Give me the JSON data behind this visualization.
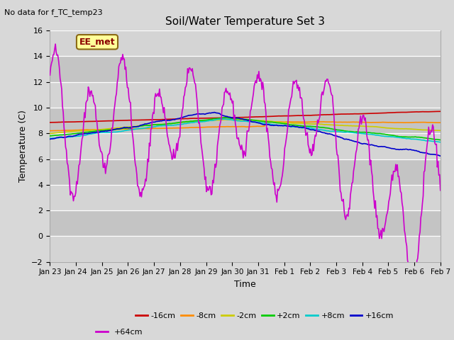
{
  "title": "Soil/Water Temperature Set 3",
  "xlabel": "Time",
  "ylabel": "Temperature (C)",
  "top_left_text": "No data for f_TC_temp23",
  "annotation_text": "EE_met",
  "ylim": [
    -2,
    16
  ],
  "yticks": [
    -2,
    0,
    2,
    4,
    6,
    8,
    10,
    12,
    14,
    16
  ],
  "xtick_labels": [
    "Jan 23",
    "Jan 24",
    "Jan 25",
    "Jan 26",
    "Jan 27",
    "Jan 28",
    "Jan 29",
    "Jan 30",
    "Jan 31",
    "Feb 1",
    "Feb 2",
    "Feb 3",
    "Feb 4",
    "Feb 5",
    "Feb 6",
    "Feb 7"
  ],
  "legend_entries": [
    "-16cm",
    "-8cm",
    "-2cm",
    "+2cm",
    "+8cm",
    "+16cm",
    "+64cm"
  ],
  "line_colors": [
    "#cc0000",
    "#ff8c00",
    "#cccc00",
    "#00cc00",
    "#00cccc",
    "#0000cc",
    "#cc00cc"
  ],
  "bg_color": "#d8d8d8",
  "band_colors": [
    "#d0d0d0",
    "#c0c0c0"
  ],
  "figsize": [
    6.4,
    4.8
  ],
  "dpi": 100
}
